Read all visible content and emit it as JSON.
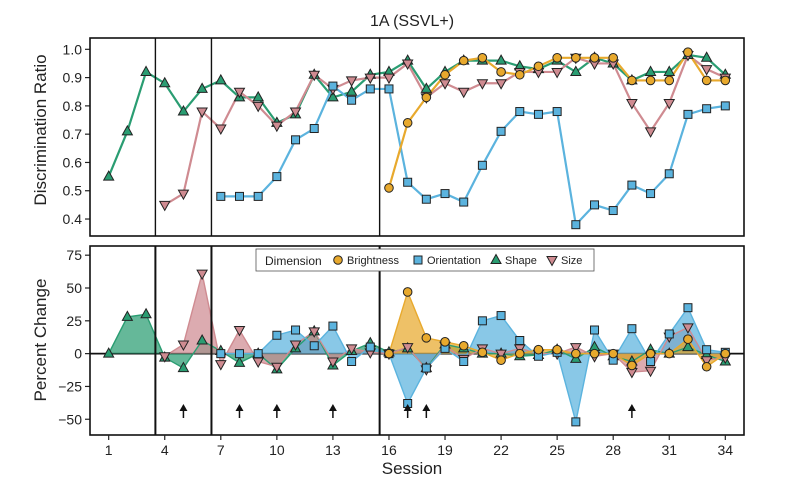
{
  "chart_data": [
    {
      "type": "line",
      "title": "1A (SSVL+)",
      "xlabel": "",
      "ylabel": "Discrimination Ratio",
      "xlim": [
        0,
        35
      ],
      "ylim": [
        0.34,
        1.04
      ],
      "yticks": [
        0.4,
        0.5,
        0.6,
        0.7,
        0.8,
        0.9,
        1.0
      ],
      "ytick_labels": [
        "0.4",
        "0.5",
        "0.6",
        "0.7",
        "0.8",
        "0.9",
        "1.0"
      ],
      "phase_dividers": [
        3.5,
        6.5,
        15.5
      ],
      "series": [
        {
          "name": "Shape",
          "color": "#2a9d72",
          "marker": "triangle-up",
          "points": [
            [
              1,
              0.55
            ],
            [
              2,
              0.71
            ],
            [
              3,
              0.92
            ],
            [
              4,
              0.88
            ],
            [
              5,
              0.78
            ],
            [
              6,
              0.86
            ],
            [
              7,
              0.89
            ],
            [
              8,
              0.83
            ],
            [
              9,
              0.83
            ],
            [
              10,
              0.74
            ],
            [
              11,
              0.77
            ],
            [
              12,
              0.91
            ],
            [
              13,
              0.83
            ],
            [
              14,
              0.85
            ],
            [
              15,
              0.91
            ],
            [
              16,
              0.92
            ],
            [
              17,
              0.96
            ],
            [
              18,
              0.86
            ],
            [
              19,
              0.92
            ],
            [
              20,
              0.96
            ],
            [
              21,
              0.96
            ],
            [
              22,
              0.96
            ],
            [
              23,
              0.94
            ],
            [
              24,
              0.93
            ],
            [
              25,
              0.96
            ],
            [
              26,
              0.92
            ],
            [
              27,
              0.97
            ],
            [
              28,
              0.95
            ],
            [
              29,
              0.89
            ],
            [
              30,
              0.92
            ],
            [
              31,
              0.92
            ],
            [
              32,
              0.98
            ],
            [
              33,
              0.97
            ],
            [
              34,
              0.91
            ]
          ]
        },
        {
          "name": "Size",
          "color": "#cf8b91",
          "marker": "triangle-down",
          "points": [
            [
              4,
              0.45
            ],
            [
              5,
              0.49
            ],
            [
              6,
              0.78
            ],
            [
              7,
              0.72
            ],
            [
              8,
              0.85
            ],
            [
              9,
              0.8
            ],
            [
              10,
              0.73
            ],
            [
              11,
              0.78
            ],
            [
              12,
              0.91
            ],
            [
              13,
              0.86
            ],
            [
              14,
              0.89
            ],
            [
              15,
              0.9
            ],
            [
              16,
              0.9
            ],
            [
              17,
              0.95
            ],
            [
              18,
              0.83
            ],
            [
              19,
              0.88
            ],
            [
              20,
              0.85
            ],
            [
              21,
              0.88
            ],
            [
              22,
              0.88
            ],
            [
              23,
              0.92
            ],
            [
              24,
              0.92
            ],
            [
              25,
              0.92
            ],
            [
              26,
              0.97
            ],
            [
              27,
              0.95
            ],
            [
              28,
              0.95
            ],
            [
              29,
              0.81
            ],
            [
              30,
              0.71
            ],
            [
              31,
              0.81
            ],
            [
              32,
              0.98
            ],
            [
              33,
              0.93
            ],
            [
              34,
              0.9
            ]
          ]
        },
        {
          "name": "Orientation",
          "color": "#5bb3de",
          "marker": "square",
          "points": [
            [
              7,
              0.48
            ],
            [
              8,
              0.48
            ],
            [
              9,
              0.48
            ],
            [
              10,
              0.55
            ],
            [
              11,
              0.68
            ],
            [
              12,
              0.72
            ],
            [
              13,
              0.87
            ],
            [
              14,
              0.82
            ],
            [
              15,
              0.86
            ],
            [
              16,
              0.86
            ],
            [
              17,
              0.53
            ],
            [
              18,
              0.47
            ],
            [
              19,
              0.49
            ],
            [
              20,
              0.46
            ],
            [
              21,
              0.59
            ],
            [
              22,
              0.71
            ],
            [
              23,
              0.78
            ],
            [
              24,
              0.77
            ],
            [
              25,
              0.78
            ],
            [
              26,
              0.38
            ],
            [
              27,
              0.45
            ],
            [
              28,
              0.43
            ],
            [
              29,
              0.52
            ],
            [
              30,
              0.49
            ],
            [
              31,
              0.56
            ],
            [
              32,
              0.77
            ],
            [
              33,
              0.79
            ],
            [
              34,
              0.8
            ]
          ]
        },
        {
          "name": "Brightness",
          "color": "#e8a92d",
          "marker": "circle",
          "points": [
            [
              16,
              0.51
            ],
            [
              17,
              0.74
            ],
            [
              18,
              0.83
            ],
            [
              19,
              0.91
            ],
            [
              20,
              0.96
            ],
            [
              21,
              0.97
            ],
            [
              22,
              0.92
            ],
            [
              23,
              0.91
            ],
            [
              24,
              0.94
            ],
            [
              25,
              0.97
            ],
            [
              26,
              0.97
            ],
            [
              27,
              0.97
            ],
            [
              28,
              0.97
            ],
            [
              29,
              0.89
            ],
            [
              30,
              0.89
            ],
            [
              31,
              0.89
            ],
            [
              32,
              0.99
            ],
            [
              33,
              0.89
            ],
            [
              34,
              0.89
            ]
          ]
        }
      ]
    },
    {
      "type": "area",
      "title": "",
      "xlabel": "Session",
      "ylabel": "Percent Change",
      "xlim": [
        0,
        35
      ],
      "ylim": [
        -62,
        82
      ],
      "xticks": [
        1,
        4,
        7,
        10,
        13,
        16,
        19,
        22,
        25,
        28,
        31,
        34
      ],
      "xtick_labels": [
        "1",
        "4",
        "7",
        "10",
        "13",
        "16",
        "19",
        "22",
        "25",
        "28",
        "31",
        "34"
      ],
      "yticks": [
        -50,
        -25,
        0,
        25,
        50,
        75
      ],
      "ytick_labels": [
        "−50",
        "−25",
        "0",
        "25",
        "50",
        "75"
      ],
      "phase_dividers": [
        3.5,
        6.5,
        15.5
      ],
      "arrows_at_sessions": [
        5,
        8,
        10,
        13,
        17,
        18,
        29
      ],
      "legend": {
        "title": "Dimension",
        "placement": "top-center",
        "entries": [
          "Brightness",
          "Orientation",
          "Shape",
          "Size"
        ]
      },
      "series": [
        {
          "name": "Shape",
          "color": "#2a9d72",
          "marker": "triangle-up",
          "points": [
            [
              1,
              0
            ],
            [
              2,
              28
            ],
            [
              3,
              30
            ],
            [
              4,
              -3
            ],
            [
              5,
              -11
            ],
            [
              6,
              10
            ],
            [
              7,
              2
            ],
            [
              8,
              -7
            ],
            [
              9,
              0
            ],
            [
              10,
              -12
            ],
            [
              11,
              4
            ],
            [
              12,
              17
            ],
            [
              13,
              -9
            ],
            [
              14,
              2
            ],
            [
              15,
              8
            ],
            [
              16,
              1
            ],
            [
              17,
              4
            ],
            [
              18,
              -11
            ],
            [
              19,
              7
            ],
            [
              20,
              4
            ],
            [
              21,
              0
            ],
            [
              22,
              0
            ],
            [
              23,
              -2
            ],
            [
              24,
              -1
            ],
            [
              25,
              3
            ],
            [
              26,
              -4
            ],
            [
              27,
              5
            ],
            [
              28,
              -2
            ],
            [
              29,
              -6
            ],
            [
              30,
              3
            ],
            [
              31,
              0
            ],
            [
              32,
              5
            ],
            [
              33,
              -1
            ],
            [
              34,
              -6
            ]
          ]
        },
        {
          "name": "Size",
          "color": "#cf8b91",
          "marker": "triangle-down",
          "points": [
            [
              4,
              -2
            ],
            [
              5,
              7
            ],
            [
              6,
              61
            ],
            [
              7,
              -8
            ],
            [
              8,
              18
            ],
            [
              9,
              -6
            ],
            [
              10,
              -10
            ],
            [
              11,
              7
            ],
            [
              12,
              17
            ],
            [
              13,
              -6
            ],
            [
              14,
              4
            ],
            [
              15,
              1
            ],
            [
              16,
              0
            ],
            [
              17,
              5
            ],
            [
              18,
              -12
            ],
            [
              19,
              6
            ],
            [
              20,
              -4
            ],
            [
              21,
              4
            ],
            [
              22,
              0
            ],
            [
              23,
              4
            ],
            [
              24,
              0
            ],
            [
              25,
              0
            ],
            [
              26,
              5
            ],
            [
              27,
              -2
            ],
            [
              28,
              0
            ],
            [
              29,
              -14
            ],
            [
              30,
              -13
            ],
            [
              31,
              13
            ],
            [
              32,
              20
            ],
            [
              33,
              -5
            ],
            [
              34,
              -3
            ]
          ]
        },
        {
          "name": "Orientation",
          "color": "#5bb3de",
          "marker": "square",
          "points": [
            [
              7,
              0
            ],
            [
              8,
              0
            ],
            [
              9,
              0
            ],
            [
              10,
              14
            ],
            [
              11,
              18
            ],
            [
              12,
              6
            ],
            [
              13,
              21
            ],
            [
              14,
              -6
            ],
            [
              15,
              5
            ],
            [
              16,
              0
            ],
            [
              17,
              -38
            ],
            [
              18,
              -11
            ],
            [
              19,
              4
            ],
            [
              20,
              -6
            ],
            [
              21,
              25
            ],
            [
              22,
              29
            ],
            [
              23,
              10
            ],
            [
              24,
              -2
            ],
            [
              25,
              1
            ],
            [
              26,
              -52
            ],
            [
              27,
              18
            ],
            [
              28,
              -5
            ],
            [
              29,
              19
            ],
            [
              30,
              -6
            ],
            [
              31,
              15
            ],
            [
              32,
              35
            ],
            [
              33,
              3
            ],
            [
              34,
              1
            ]
          ]
        },
        {
          "name": "Brightness",
          "color": "#e8a92d",
          "marker": "circle",
          "points": [
            [
              16,
              0
            ],
            [
              17,
              47
            ],
            [
              18,
              12
            ],
            [
              19,
              9
            ],
            [
              20,
              6
            ],
            [
              21,
              1
            ],
            [
              22,
              -5
            ],
            [
              23,
              0
            ],
            [
              24,
              3
            ],
            [
              25,
              3
            ],
            [
              26,
              0
            ],
            [
              27,
              0
            ],
            [
              28,
              0
            ],
            [
              29,
              -9
            ],
            [
              30,
              0
            ],
            [
              31,
              0
            ],
            [
              32,
              11
            ],
            [
              33,
              -10
            ],
            [
              34,
              0
            ]
          ]
        }
      ]
    }
  ]
}
